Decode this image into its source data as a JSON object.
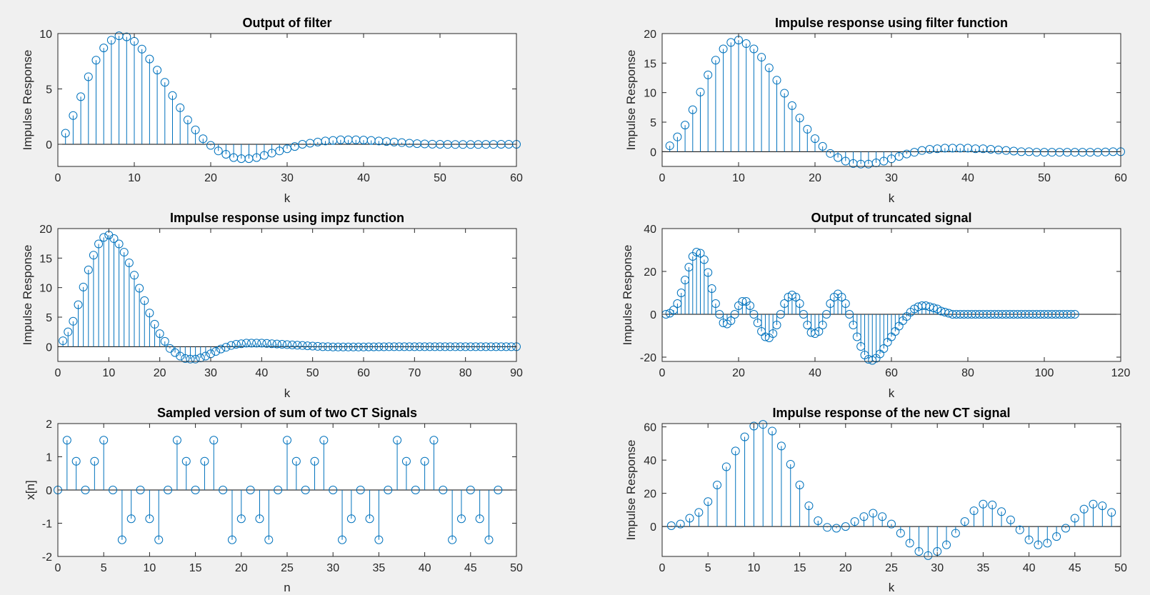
{
  "colors": {
    "stem": "#0072bd",
    "figure_bg": "#f0f0f0",
    "axes_bg": "#ffffff",
    "axes_edge": "#262626"
  },
  "chart_data": [
    {
      "type": "stem",
      "title": "Output of filter",
      "xlabel": "k",
      "ylabel": "Impulse Response",
      "xlim": [
        0,
        60
      ],
      "ylim": [
        -2,
        10
      ],
      "xticks": [
        0,
        10,
        20,
        30,
        40,
        50,
        60
      ],
      "yticks": [
        0,
        5,
        10
      ],
      "grid": false,
      "series": [
        {
          "x": [
            1,
            2,
            3,
            4,
            5,
            6,
            7,
            8,
            9,
            10,
            11,
            12,
            13,
            14,
            15,
            16,
            17,
            18,
            19,
            20,
            21,
            22,
            23,
            24,
            25,
            26,
            27,
            28,
            29,
            30,
            31,
            32,
            33,
            34,
            35,
            36,
            37,
            38,
            39,
            40,
            41,
            42,
            43,
            44,
            45,
            46,
            47,
            48,
            49,
            50,
            51,
            52,
            53,
            54,
            55,
            56,
            57,
            58,
            59,
            60
          ],
          "y": [
            1.0,
            2.6,
            4.3,
            6.1,
            7.6,
            8.7,
            9.4,
            9.8,
            9.7,
            9.3,
            8.6,
            7.7,
            6.7,
            5.6,
            4.4,
            3.3,
            2.2,
            1.3,
            0.5,
            -0.1,
            -0.6,
            -0.9,
            -1.2,
            -1.3,
            -1.3,
            -1.2,
            -1.0,
            -0.8,
            -0.6,
            -0.4,
            -0.2,
            0.0,
            0.1,
            0.2,
            0.3,
            0.35,
            0.4,
            0.4,
            0.4,
            0.38,
            0.35,
            0.3,
            0.25,
            0.2,
            0.15,
            0.1,
            0.06,
            0.03,
            0.01,
            0,
            -0.01,
            -0.02,
            -0.02,
            -0.02,
            -0.02,
            -0.01,
            -0.01,
            0,
            0,
            0
          ]
        }
      ]
    },
    {
      "type": "stem",
      "title": "Impulse response using filter function",
      "xlabel": "k",
      "ylabel": "Impulse Response",
      "xlim": [
        0,
        60
      ],
      "ylim": [
        -2.5,
        20
      ],
      "xticks": [
        0,
        10,
        20,
        30,
        40,
        50,
        60
      ],
      "yticks": [
        0,
        5,
        10,
        15,
        20
      ],
      "grid": false,
      "series": [
        {
          "x": [
            1,
            2,
            3,
            4,
            5,
            6,
            7,
            8,
            9,
            10,
            11,
            12,
            13,
            14,
            15,
            16,
            17,
            18,
            19,
            20,
            21,
            22,
            23,
            24,
            25,
            26,
            27,
            28,
            29,
            30,
            31,
            32,
            33,
            34,
            35,
            36,
            37,
            38,
            39,
            40,
            41,
            42,
            43,
            44,
            45,
            46,
            47,
            48,
            49,
            50,
            51,
            52,
            53,
            54,
            55,
            56,
            57,
            58,
            59,
            60
          ],
          "y": [
            1.0,
            2.5,
            4.5,
            7.1,
            10.1,
            13.0,
            15.5,
            17.4,
            18.5,
            18.9,
            18.3,
            17.4,
            16.0,
            14.2,
            12.1,
            9.9,
            7.8,
            5.7,
            3.8,
            2.2,
            0.9,
            -0.3,
            -1.0,
            -1.6,
            -2.0,
            -2.1,
            -2.1,
            -1.9,
            -1.6,
            -1.2,
            -0.8,
            -0.4,
            -0.1,
            0.2,
            0.4,
            0.5,
            0.6,
            0.6,
            0.6,
            0.6,
            0.5,
            0.5,
            0.4,
            0.3,
            0.2,
            0.1,
            0.0,
            0.0,
            -0.1,
            -0.1,
            -0.1,
            -0.1,
            -0.1,
            -0.1,
            -0.1,
            -0.1,
            -0.1,
            -0.05,
            0,
            0
          ]
        }
      ]
    },
    {
      "type": "stem",
      "title": "Impulse response using impz function",
      "xlabel": "k",
      "ylabel": "Impulse Response",
      "xlim": [
        0,
        90
      ],
      "ylim": [
        -2.5,
        20
      ],
      "xticks": [
        0,
        10,
        20,
        30,
        40,
        50,
        60,
        70,
        80,
        90
      ],
      "yticks": [
        0,
        5,
        10,
        15,
        20
      ],
      "grid": false,
      "series": [
        {
          "x": [
            1,
            2,
            3,
            4,
            5,
            6,
            7,
            8,
            9,
            10,
            11,
            12,
            13,
            14,
            15,
            16,
            17,
            18,
            19,
            20,
            21,
            22,
            23,
            24,
            25,
            26,
            27,
            28,
            29,
            30,
            31,
            32,
            33,
            34,
            35,
            36,
            37,
            38,
            39,
            40,
            41,
            42,
            43,
            44,
            45,
            46,
            47,
            48,
            49,
            50,
            51,
            52,
            53,
            54,
            55,
            56,
            57,
            58,
            59,
            60,
            61,
            62,
            63,
            64,
            65,
            66,
            67,
            68,
            69,
            70,
            71,
            72,
            73,
            74,
            75,
            76,
            77,
            78,
            79,
            80,
            81,
            82,
            83,
            84,
            85,
            86,
            87,
            88,
            89,
            90
          ],
          "y": [
            1.0,
            2.5,
            4.3,
            7.1,
            10.1,
            13.0,
            15.5,
            17.4,
            18.5,
            18.9,
            18.3,
            17.4,
            16.0,
            14.2,
            12.1,
            9.9,
            7.8,
            5.7,
            3.8,
            2.2,
            0.9,
            -0.3,
            -1.0,
            -1.6,
            -2.0,
            -2.1,
            -2.1,
            -1.9,
            -1.6,
            -1.2,
            -0.8,
            -0.4,
            -0.1,
            0.2,
            0.4,
            0.5,
            0.6,
            0.6,
            0.6,
            0.6,
            0.55,
            0.5,
            0.45,
            0.4,
            0.35,
            0.3,
            0.25,
            0.2,
            0.15,
            0.1,
            0.05,
            0.0,
            0.0,
            -0.05,
            -0.05,
            -0.05,
            -0.05,
            -0.05,
            -0.05,
            -0.05,
            -0.03,
            -0.03,
            -0.02,
            -0.02,
            -0.01,
            0,
            0,
            0,
            0,
            0,
            0,
            0,
            0,
            0,
            0,
            0,
            0,
            0,
            0,
            0,
            0,
            0,
            0,
            0,
            0,
            0,
            0,
            0,
            0,
            0
          ]
        }
      ]
    },
    {
      "type": "stem",
      "title": "Output of truncated signal",
      "xlabel": "k",
      "ylabel": "Impulse Response",
      "xlim": [
        0,
        120
      ],
      "ylim": [
        -22,
        40
      ],
      "xticks": [
        0,
        20,
        40,
        60,
        80,
        100,
        120
      ],
      "yticks": [
        -20,
        0,
        20,
        40
      ],
      "grid": false,
      "series": [
        {
          "x": [
            1,
            2,
            3,
            4,
            5,
            6,
            7,
            8,
            9,
            10,
            11,
            12,
            13,
            14,
            15,
            16,
            17,
            18,
            19,
            20,
            21,
            22,
            23,
            24,
            25,
            26,
            27,
            28,
            29,
            30,
            31,
            32,
            33,
            34,
            35,
            36,
            37,
            38,
            39,
            40,
            41,
            42,
            43,
            44,
            45,
            46,
            47,
            48,
            49,
            50,
            51,
            52,
            53,
            54,
            55,
            56,
            57,
            58,
            59,
            60,
            61,
            62,
            63,
            64,
            65,
            66,
            67,
            68,
            69,
            70,
            71,
            72,
            73,
            74,
            75,
            76,
            77,
            78,
            79,
            80,
            81,
            82,
            83,
            84,
            85,
            86,
            87,
            88,
            89,
            90,
            91,
            92,
            93,
            94,
            95,
            96,
            97,
            98,
            99,
            100,
            101,
            102,
            103,
            104,
            105,
            106,
            107,
            108
          ],
          "y": [
            0,
            0.5,
            2,
            5,
            10,
            16,
            22,
            27,
            29,
            28.5,
            25.5,
            19.5,
            12,
            5,
            0,
            -4,
            -4.5,
            -3,
            0,
            4,
            6,
            6,
            4,
            0,
            -4,
            -8,
            -10.5,
            -11,
            -9,
            -5,
            0,
            5,
            8,
            9,
            8,
            5,
            0,
            -5,
            -8.5,
            -9,
            -8,
            -5,
            0,
            5,
            8,
            9.5,
            8,
            5,
            0,
            -5,
            -10.5,
            -15,
            -19,
            -21,
            -21.5,
            -20.5,
            -18.5,
            -16,
            -13,
            -10.5,
            -8,
            -5.5,
            -3,
            -1,
            1,
            2.5,
            3.5,
            4,
            4,
            3.5,
            3,
            2.5,
            1.5,
            1,
            0.5,
            0,
            0,
            0,
            0,
            0,
            0,
            0,
            0,
            0,
            0,
            0,
            0,
            0,
            0,
            0,
            0,
            0,
            0,
            0,
            0,
            0,
            0,
            0,
            0,
            0,
            0,
            0,
            0,
            0,
            0,
            0,
            0,
            0
          ]
        }
      ]
    },
    {
      "type": "stem",
      "title": "Sampled version of sum of two CT Signals",
      "xlabel": "n",
      "ylabel": "x[n]",
      "xlim": [
        0,
        50
      ],
      "ylim": [
        -2,
        2
      ],
      "xticks": [
        0,
        5,
        10,
        15,
        20,
        25,
        30,
        35,
        40,
        45,
        50
      ],
      "yticks": [
        -2,
        -1,
        0,
        1,
        2
      ],
      "grid": false,
      "series": [
        {
          "x": [
            0,
            1,
            2,
            3,
            4,
            5,
            6,
            7,
            8,
            9,
            10,
            11,
            12,
            13,
            14,
            15,
            16,
            17,
            18,
            19,
            20,
            21,
            22,
            23,
            24,
            25,
            26,
            27,
            28,
            29,
            30,
            31,
            32,
            33,
            34,
            35,
            36,
            37,
            38,
            39,
            40,
            41,
            42,
            43,
            44,
            45,
            46,
            47,
            48
          ],
          "y": [
            0,
            1.5,
            0.866,
            0,
            0.866,
            1.5,
            0,
            -1.5,
            -0.866,
            0,
            -0.866,
            -1.5,
            0,
            1.5,
            0.866,
            0,
            0.866,
            1.5,
            0,
            -1.5,
            -0.866,
            0,
            -0.866,
            -1.5,
            0,
            1.5,
            0.866,
            0,
            0.866,
            1.5,
            0,
            -1.5,
            -0.866,
            0,
            -0.866,
            -1.5,
            0,
            1.5,
            0.866,
            0,
            0.866,
            1.5,
            0,
            -1.5,
            -0.866,
            0,
            -0.866,
            -1.5,
            0
          ]
        }
      ]
    },
    {
      "type": "stem",
      "title": "Impulse response of the new CT signal",
      "xlabel": "k",
      "ylabel": "Impulse Response",
      "xlim": [
        0,
        50
      ],
      "ylim": [
        -18,
        62
      ],
      "xticks": [
        0,
        5,
        10,
        15,
        20,
        25,
        30,
        35,
        40,
        45,
        50
      ],
      "yticks": [
        0,
        20,
        40,
        60
      ],
      "grid": false,
      "series": [
        {
          "x": [
            1,
            2,
            3,
            4,
            5,
            6,
            7,
            8,
            9,
            10,
            11,
            12,
            13,
            14,
            15,
            16,
            17,
            18,
            19,
            20,
            21,
            22,
            23,
            24,
            25,
            26,
            27,
            28,
            29,
            30,
            31,
            32,
            33,
            34,
            35,
            36,
            37,
            38,
            39,
            40,
            41,
            42,
            43,
            44,
            45,
            46,
            47,
            48,
            49
          ],
          "y": [
            0.5,
            1.5,
            5,
            8.5,
            15,
            25,
            36,
            45.5,
            54,
            60.5,
            61.5,
            57.5,
            48.5,
            37.5,
            25,
            12.5,
            3.5,
            -0.5,
            -1,
            0,
            3,
            6,
            8,
            6,
            1.5,
            -4,
            -10,
            -15,
            -17.5,
            -15,
            -11,
            -4,
            3,
            9.5,
            13.5,
            13,
            9,
            4,
            -2,
            -8,
            -11,
            -10,
            -6,
            -1,
            5,
            10.5,
            13.5,
            12.5,
            8.5
          ]
        }
      ]
    }
  ]
}
